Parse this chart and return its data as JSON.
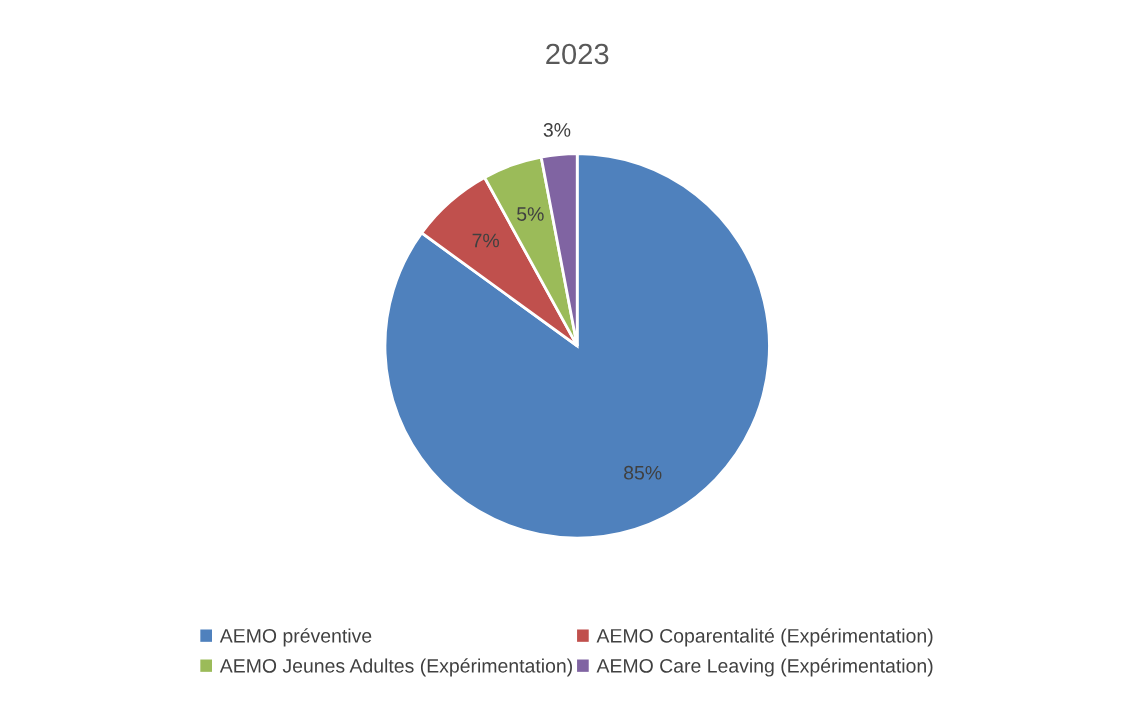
{
  "chart_data": {
    "type": "pie",
    "title": "2023",
    "categories": [
      "AEMO préventive",
      "AEMO Coparentalité (Expérimentation)",
      "AEMO Jeunes Adultes (Expérimentation)",
      "AEMO Care Leaving (Expérimentation)"
    ],
    "values": [
      85,
      7,
      5,
      3
    ],
    "colors": [
      "#4f81bd",
      "#c0504d",
      "#9bbb59",
      "#8064a2"
    ],
    "value_labels": [
      "85%",
      "7%",
      "5%",
      "3%"
    ],
    "legend": "bottom"
  }
}
